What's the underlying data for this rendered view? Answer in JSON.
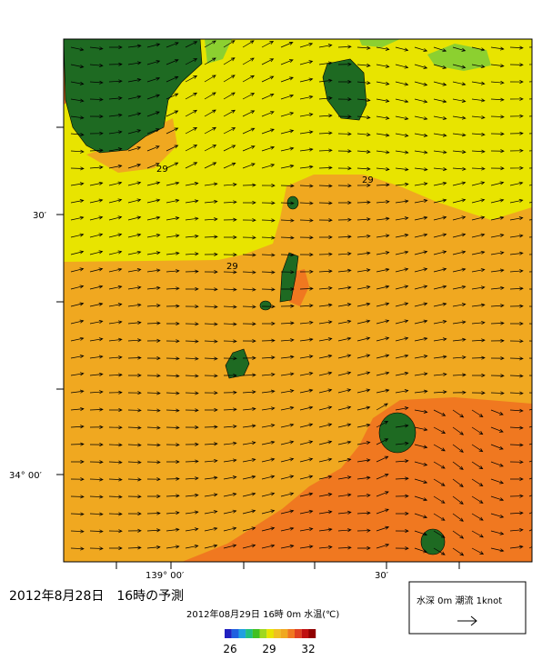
{
  "map": {
    "title": "2012年8月28日　16時の予測",
    "colorbar_title": "2012年08月29日 16時 0m 水温(℃)",
    "colorbar_labels": [
      "26",
      "29",
      "32"
    ],
    "legend": "水深 0m 潮流 1knot",
    "lat_labels": [
      "30′",
      "34° 00′"
    ],
    "lon_labels": [
      "139° 00′",
      "30′"
    ],
    "contour_labels": [
      "29",
      "29",
      "29"
    ]
  }
}
